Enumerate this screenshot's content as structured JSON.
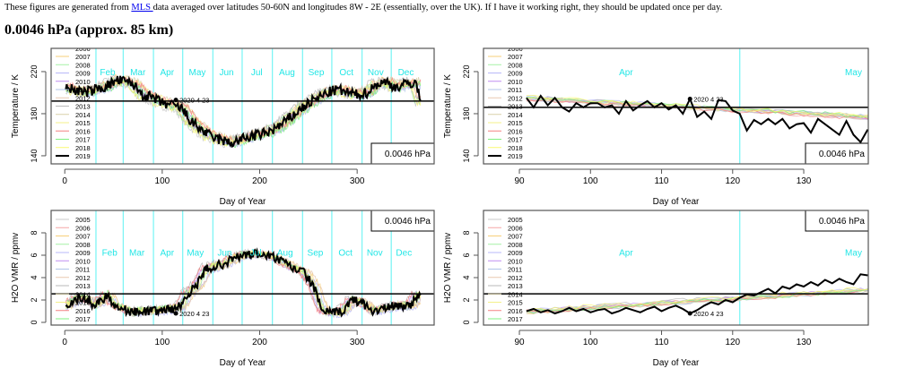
{
  "intro": {
    "before": "These figures are generated from ",
    "link": "MLS ",
    "after": "data averaged over latitudes 50-60N and longitudes 8W - 2E (essentially, over the UK). If I have it working right, they should be updated once per day."
  },
  "heading": "0.0046 hPa (approx. 85 km)",
  "colors": {
    "month_line": "#7ff5f5",
    "month_label": "#22e6e6",
    "years": {
      "2005": "#c8c8c8",
      "2006": "#f4a6a6",
      "2007": "#f7cf7a",
      "2008": "#a6f0a6",
      "2009": "#b8b8f8",
      "2010": "#c08ef0",
      "2011": "#b0c4e8",
      "2012": "#e8c8b0",
      "2013": "#b8b8b8",
      "2014": "#d8d0a8",
      "2015": "#f4f08a",
      "2016": "#f48080",
      "2017": "#80f080",
      "2018": "#f8f870",
      "2019": "#000000"
    }
  },
  "chart_data": [
    {
      "id": "temp-year",
      "type": "line",
      "xlabel": "Day of Year",
      "ylabel": "Temperature / K",
      "xlim": [
        -14,
        379
      ],
      "ylim": [
        132.3,
        242.1
      ],
      "xticks": [
        0,
        100,
        200,
        300
      ],
      "yticks": [
        140,
        180,
        220
      ],
      "month_bounds": [
        32,
        60,
        91,
        121,
        152,
        182,
        213,
        244,
        274,
        305,
        335
      ],
      "months": [
        {
          "label": "Feb",
          "x": 44
        },
        {
          "label": "Mar",
          "x": 75
        },
        {
          "label": "Apr",
          "x": 105
        },
        {
          "label": "May",
          "x": 136
        },
        {
          "label": "Jun",
          "x": 166
        },
        {
          "label": "Jul",
          "x": 197
        },
        {
          "label": "Aug",
          "x": 228
        },
        {
          "label": "Sep",
          "x": 258
        },
        {
          "label": "Oct",
          "x": 289
        },
        {
          "label": "Nov",
          "x": 319
        },
        {
          "label": "Dec",
          "x": 350
        }
      ],
      "month_label_y": 220,
      "reference_line": 192,
      "pressure_label": "0.0046 hPa",
      "pressure_box": "bottom-right",
      "legend": [
        "2005",
        "2006",
        "2007",
        "2008",
        "2009",
        "2010",
        "2011",
        "2012",
        "2013",
        "2014",
        "2015",
        "2016",
        "2017",
        "2018",
        "2019"
      ],
      "marker": {
        "label": "2020 4 23",
        "x": 114,
        "y": 193
      },
      "noise": 5,
      "series_2019": {
        "x": [
          1,
          20,
          40,
          55,
          70,
          80,
          90,
          100,
          110,
          120,
          130,
          140,
          150,
          160,
          170,
          180,
          190,
          200,
          210,
          220,
          230,
          240,
          250,
          260,
          270,
          280,
          290,
          300,
          310,
          320,
          330,
          340,
          350,
          360,
          365
        ],
        "y": [
          205,
          200,
          205,
          212,
          208,
          198,
          195,
          190,
          188,
          185,
          172,
          165,
          158,
          155,
          152,
          155,
          158,
          160,
          163,
          168,
          175,
          183,
          190,
          195,
          200,
          203,
          200,
          198,
          200,
          208,
          210,
          205,
          208,
          210,
          192
        ]
      }
    },
    {
      "id": "temp-zoom",
      "type": "line",
      "xlabel": "Day of Year",
      "ylabel": "Temperature / K",
      "xlim": [
        84.95,
        139.08
      ],
      "ylim": [
        132.3,
        242.1
      ],
      "xticks": [
        90,
        100,
        110,
        120,
        130
      ],
      "yticks": [
        140,
        180,
        220
      ],
      "month_bounds": [
        121
      ],
      "months": [
        {
          "label": "Apr",
          "x": 105
        },
        {
          "label": "May",
          "x": 137
        }
      ],
      "month_label_y": 220,
      "reference_line": 186,
      "pressure_label": "0.0046 hPa",
      "pressure_box": "bottom-right",
      "legend": [
        "2005",
        "2006",
        "2007",
        "2008",
        "2009",
        "2010",
        "2011",
        "2012",
        "2013",
        "2014",
        "2015",
        "2016",
        "2017",
        "2018",
        "2019"
      ],
      "marker": {
        "label": "2020 4 23",
        "x": 114,
        "y": 194
      },
      "noise": 0,
      "series_2019": {
        "x": [
          91,
          92,
          93,
          94,
          95,
          96,
          97,
          98,
          99,
          100,
          101,
          102,
          103,
          104,
          105,
          106,
          107,
          108,
          109,
          110,
          111,
          112,
          113,
          114,
          115,
          116,
          117,
          118,
          119,
          120,
          121,
          122,
          123,
          124,
          125,
          126,
          127,
          128,
          129,
          130,
          131,
          132,
          133,
          134,
          135,
          136,
          137,
          138,
          139
        ],
        "y": [
          195,
          186,
          197,
          188,
          195,
          186,
          182,
          190,
          186,
          190,
          190,
          186,
          188,
          180,
          192,
          183,
          188,
          192,
          186,
          190,
          184,
          188,
          180,
          194,
          177,
          182,
          175,
          193,
          192,
          183,
          180,
          164,
          174,
          170,
          175,
          170,
          175,
          166,
          170,
          171,
          162,
          175,
          170,
          165,
          160,
          173,
          160,
          153,
          165
        ]
      }
    },
    {
      "id": "h2o-year",
      "type": "line",
      "xlabel": "Day of Year",
      "ylabel": "H2O VMR / ppmv",
      "xlim": [
        -14,
        379
      ],
      "ylim": [
        -0.24,
        10
      ],
      "xticks": [
        0,
        100,
        200,
        300
      ],
      "yticks": [
        0,
        2,
        4,
        6,
        8
      ],
      "month_bounds": [
        32,
        60,
        91,
        121,
        152,
        182,
        213,
        244,
        274,
        305,
        335
      ],
      "months": [
        {
          "label": "Feb",
          "x": 46
        },
        {
          "label": "Mar",
          "x": 74
        },
        {
          "label": "Apr",
          "x": 105
        },
        {
          "label": "May",
          "x": 134
        },
        {
          "label": "Jun",
          "x": 164
        },
        {
          "label": "Jul",
          "x": 196
        },
        {
          "label": "Aug",
          "x": 226
        },
        {
          "label": "Sep",
          "x": 257
        },
        {
          "label": "Oct",
          "x": 288
        },
        {
          "label": "Nov",
          "x": 318
        },
        {
          "label": "Dec",
          "x": 348
        }
      ],
      "month_label_y": 6.3,
      "reference_line": 2.55,
      "pressure_label": "0.0046 hPa",
      "pressure_box": "top-right",
      "legend": [
        "2005",
        "2006",
        "2007",
        "2008",
        "2009",
        "2010",
        "2011",
        "2012",
        "2013",
        "2014",
        "2015",
        "2016",
        "2017",
        "2018"
      ],
      "marker": {
        "label": "2020 4 23",
        "x": 114,
        "y": 0.8
      },
      "noise": 0.4,
      "series_2019": {
        "x": [
          1,
          15,
          25,
          30,
          45,
          50,
          60,
          70,
          80,
          90,
          100,
          110,
          120,
          125,
          135,
          145,
          155,
          165,
          175,
          185,
          195,
          205,
          215,
          225,
          235,
          245,
          255,
          260,
          265,
          275,
          285,
          295,
          305,
          315,
          325,
          335,
          345,
          355,
          362,
          365
        ],
        "y": [
          1.5,
          2.2,
          2.0,
          1.5,
          2.5,
          1.5,
          1.2,
          0.9,
          1.0,
          1.0,
          1.1,
          1.2,
          1.5,
          2.5,
          3.2,
          4.8,
          5.0,
          5.3,
          5.8,
          6.0,
          6.1,
          6.0,
          5.8,
          5.3,
          4.8,
          4.5,
          3.3,
          2.0,
          1.0,
          0.8,
          1.0,
          2.0,
          1.8,
          1.0,
          1.2,
          1.4,
          1.5,
          1.5,
          2.5,
          2.3
        ]
      }
    },
    {
      "id": "h2o-zoom",
      "type": "line",
      "xlabel": "Day of Year",
      "ylabel": "H2O VMR / ppmv",
      "xlim": [
        84.95,
        139.08
      ],
      "ylim": [
        -0.24,
        10
      ],
      "xticks": [
        90,
        100,
        110,
        120,
        130
      ],
      "yticks": [
        0,
        2,
        4,
        6,
        8
      ],
      "month_bounds": [
        121
      ],
      "months": [
        {
          "label": "Apr",
          "x": 105
        },
        {
          "label": "May",
          "x": 137
        }
      ],
      "month_label_y": 6.3,
      "reference_line": 2.55,
      "pressure_label": "0.0046 hPa",
      "pressure_box": "top-right",
      "legend": [
        "2005",
        "2006",
        "2007",
        "2008",
        "2009",
        "2010",
        "2011",
        "2012",
        "2013",
        "2014",
        "2015",
        "2016",
        "2017",
        "2018"
      ],
      "marker": {
        "label": "2020 4 23",
        "x": 114,
        "y": 0.8
      },
      "noise": 0,
      "series_2019": {
        "x": [
          91,
          92,
          93,
          94,
          95,
          96,
          97,
          98,
          99,
          100,
          101,
          102,
          103,
          104,
          105,
          106,
          107,
          108,
          109,
          110,
          111,
          112,
          113,
          114,
          115,
          116,
          117,
          118,
          119,
          120,
          121,
          122,
          123,
          124,
          125,
          126,
          127,
          128,
          129,
          130,
          131,
          132,
          133,
          134,
          135,
          136,
          137,
          138,
          139
        ],
        "y": [
          1.0,
          1.2,
          0.9,
          1.1,
          0.8,
          1.0,
          1.3,
          1.0,
          1.2,
          0.9,
          1.1,
          1.2,
          0.8,
          1.0,
          1.3,
          1.1,
          0.9,
          1.2,
          1.4,
          1.0,
          1.3,
          1.5,
          1.2,
          0.8,
          1.1,
          1.5,
          1.8,
          1.6,
          2.0,
          1.8,
          2.2,
          2.5,
          2.4,
          2.7,
          3.0,
          2.6,
          3.2,
          3.0,
          3.4,
          3.2,
          3.6,
          3.3,
          3.8,
          3.5,
          3.9,
          3.6,
          3.4,
          4.3,
          4.2
        ]
      }
    }
  ]
}
